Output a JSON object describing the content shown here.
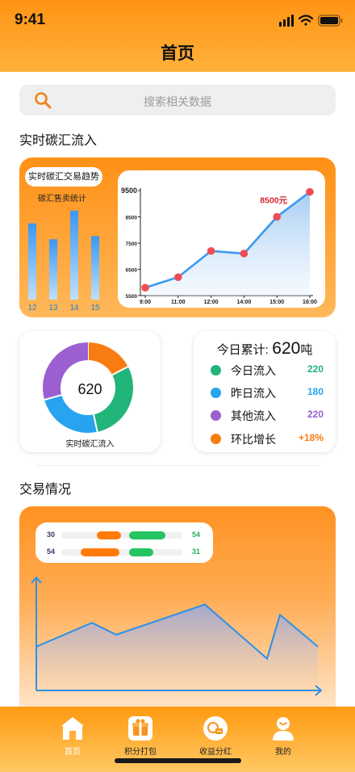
{
  "status_bar": {
    "time": "9:41"
  },
  "header": {
    "title": "首页"
  },
  "search": {
    "placeholder": "搜索相关数据"
  },
  "sections": {
    "realtime_title": "实时碳汇流入",
    "trade_title": "交易情况"
  },
  "top_card": {
    "pill_label": "实时碳汇交易趋势",
    "mini_chart_title": "碳汇售卖统计"
  },
  "donut": {
    "center_value": "620",
    "caption": "实时碳汇流入"
  },
  "stats": {
    "total_label": "今日累计:",
    "total_value": "620",
    "total_unit": "吨",
    "rows": [
      {
        "label": "今日流入",
        "value": "220",
        "color": "#21b57a"
      },
      {
        "label": "昨日流入",
        "value": "180",
        "color": "#27a3ef"
      },
      {
        "label": "其他流入",
        "value": "220",
        "color": "#9b5fd0"
      },
      {
        "label": "环比增长",
        "value": "+18%",
        "color": "#f97c12"
      }
    ]
  },
  "trade_legend": {
    "rows": [
      {
        "left": "30",
        "right": "54",
        "orange": 0.38,
        "green": 0.62
      },
      {
        "left": "54",
        "right": "31",
        "orange": 0.62,
        "green": 0.38
      }
    ],
    "colors": {
      "orange": "#ff7b0a",
      "green": "#25c460",
      "left_num": "#333d66",
      "right_num": "#1db05c"
    }
  },
  "tabbar": {
    "items": [
      {
        "label": "首页",
        "icon": "home-icon"
      },
      {
        "label": "积分打包",
        "icon": "gift-package-icon"
      },
      {
        "label": "收益分红",
        "icon": "coins-icon"
      },
      {
        "label": "我的",
        "icon": "user-icon"
      }
    ]
  },
  "chart_data": [
    {
      "type": "bar",
      "title": "碳汇售卖统计",
      "categories": [
        "12",
        "13",
        "14",
        "15"
      ],
      "values": [
        2.4,
        1.9,
        2.8,
        2.0
      ],
      "note_units": "relative"
    },
    {
      "type": "line",
      "title": "实时碳汇交易趋势",
      "x": [
        "9:00",
        "11:00",
        "12:00",
        "14:00",
        "15:00",
        "16:00"
      ],
      "y": [
        5800,
        6200,
        7200,
        7100,
        8500,
        9450
      ],
      "ylim": [
        5500,
        9500
      ],
      "yticks": [
        "5500",
        "6500",
        "7500",
        "8500",
        "9500"
      ],
      "annotation": "8500元",
      "annotation_index": 4
    },
    {
      "type": "pie",
      "categories": [
        "今日流入",
        "昨日流入",
        "其他流入",
        "环比增长"
      ],
      "values": [
        220,
        180,
        220,
        130
      ],
      "colors": [
        "#21b57a",
        "#27a3ef",
        "#9b5fd0",
        "#f97c12"
      ]
    },
    {
      "type": "area",
      "x": [
        0,
        1,
        2,
        3,
        4,
        5,
        6,
        7
      ],
      "y": [
        55,
        85,
        70,
        108,
        40,
        95,
        55,
        40
      ],
      "ylim": [
        0,
        140
      ],
      "grid": false
    }
  ]
}
